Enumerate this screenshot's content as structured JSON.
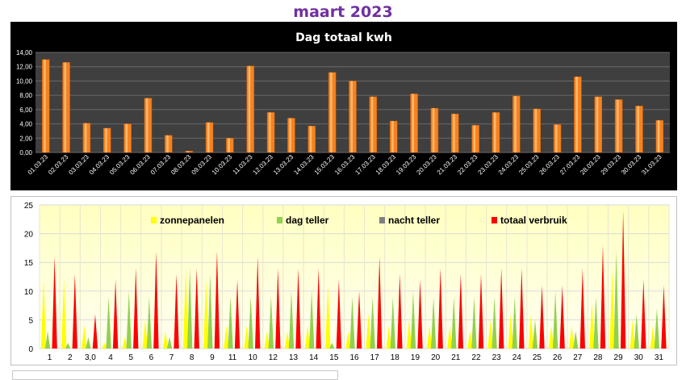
{
  "page_title": "maart 2023",
  "chart_data": [
    {
      "type": "bar",
      "title": "Dag totaal kwh",
      "categories": [
        "01.03.23",
        "02.03.23",
        "03.03.23",
        "04.03.23",
        "05.03.23",
        "06.03.23",
        "07.03.23",
        "08.03.23",
        "09.03.23",
        "10.03.23",
        "11.03.23",
        "12.03.23",
        "13.03.23",
        "14.03.23",
        "15.03.23",
        "16.03.23",
        "17.03.23",
        "18.03.23",
        "19.03.23",
        "20.03.23",
        "21.03.23",
        "22.03.23",
        "23.03.23",
        "24.03.23",
        "25.03.23",
        "26.03.23",
        "27.03.23",
        "28.03.23",
        "29.03.23",
        "30.03.23",
        "31.03.23"
      ],
      "values": [
        13.0,
        12.6,
        4.1,
        3.4,
        4.0,
        7.6,
        2.4,
        0.2,
        4.2,
        2.0,
        12.1,
        5.6,
        4.8,
        3.7,
        11.2,
        10.0,
        7.8,
        4.4,
        8.2,
        6.2,
        5.4,
        3.8,
        5.6,
        7.9,
        6.1,
        3.9,
        10.6,
        7.8,
        7.4,
        6.5,
        4.5
      ],
      "ylim": [
        0,
        14
      ],
      "yticks": [
        "0,00",
        "2,00",
        "4,00",
        "6,00",
        "8,00",
        "10,00",
        "12,00",
        "14,00"
      ],
      "grid": true,
      "colors": {
        "background": "#000000",
        "plot": "#3f3f3f",
        "bar": "#f58220",
        "text": "#ffffff"
      }
    },
    {
      "type": "area",
      "title": "",
      "categories": [
        "1",
        "2",
        "3,0",
        "4",
        "5",
        "6",
        "7",
        "8",
        "9",
        "11",
        "10",
        "12",
        "13",
        "14",
        "15",
        "16",
        "17",
        "18",
        "19",
        "20",
        "21",
        "22",
        "23",
        "24",
        "25",
        "26",
        "27",
        "28",
        "29",
        "30",
        "31"
      ],
      "ylim": [
        0,
        25
      ],
      "yticks": [
        "0",
        "5",
        "10",
        "15",
        "20",
        "25"
      ],
      "grid": true,
      "legend_position": "top",
      "series": [
        {
          "name": "zonnepanelen",
          "color": "#ffff00",
          "values": [
            12,
            12,
            4,
            1,
            2,
            5,
            3,
            14,
            12,
            4,
            4,
            3,
            3,
            4,
            11,
            3,
            6,
            4,
            5,
            4,
            4,
            3,
            5,
            6,
            6,
            4,
            4,
            8,
            14,
            5,
            4
          ]
        },
        {
          "name": "dag teller",
          "color": "#92d050",
          "values": [
            3,
            1,
            2,
            9,
            10,
            9,
            2,
            14,
            13,
            9,
            9,
            9,
            10,
            10,
            1,
            9,
            9,
            9,
            10,
            9,
            9,
            9,
            9,
            9,
            5,
            10,
            3,
            9,
            17,
            6,
            7
          ]
        },
        {
          "name": "nacht teller",
          "color": "#808080",
          "values": [
            0,
            0,
            0,
            0,
            0,
            0,
            0,
            0,
            0,
            0,
            0,
            0,
            0,
            0,
            0,
            0,
            0,
            0,
            0,
            0,
            0,
            0,
            0,
            0,
            0,
            0,
            0,
            0,
            0,
            0,
            0
          ]
        },
        {
          "name": "totaal verbruik",
          "color": "#ff0000",
          "values": [
            16,
            13,
            6,
            12,
            14,
            17,
            13,
            14,
            17,
            12,
            16,
            14,
            14,
            14,
            12,
            10,
            16,
            13,
            12,
            14,
            13,
            13,
            14,
            14,
            11,
            11,
            14,
            18,
            24,
            12,
            11
          ]
        }
      ],
      "colors": {
        "plot_top": "#ffffc8",
        "plot_bottom": "#fffff0",
        "grid": "#d9d9d9"
      }
    }
  ]
}
